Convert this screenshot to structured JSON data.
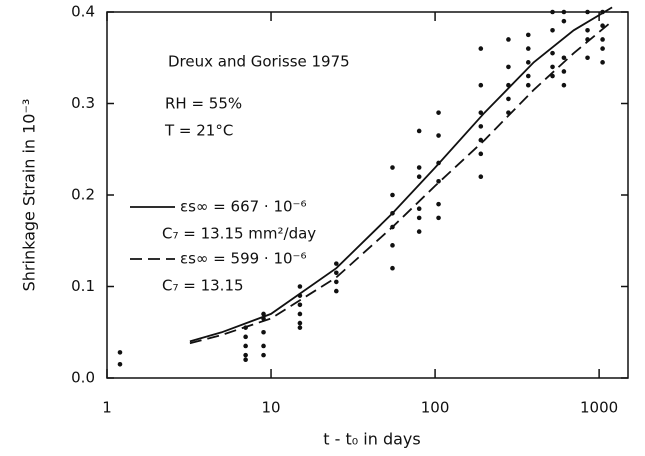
{
  "chart_data": {
    "type": "scatter",
    "xlabel": "t - t₀ in days",
    "ylabel": "Shrinkage Strain in 10⁻³",
    "annotations": [
      "Dreux and Gorisse 1975",
      "RH = 55%",
      "T = 21°C"
    ],
    "xscale": "log",
    "xlim": [
      1,
      1500
    ],
    "xticks": [
      1,
      10,
      100,
      1000
    ],
    "ylim": [
      0,
      0.4
    ],
    "yticks": [
      {
        "value": 0,
        "label": "0.0"
      },
      0.1,
      0.2,
      0.3,
      0.4
    ],
    "points": {
      "color": "#111111",
      "x": [
        1.2,
        1.2,
        7,
        7,
        7,
        7,
        7,
        9,
        9,
        9,
        9,
        9,
        15,
        15,
        15,
        15,
        15,
        15,
        25,
        25,
        25,
        25,
        55,
        55,
        55,
        55,
        55,
        55,
        80,
        80,
        80,
        80,
        80,
        80,
        105,
        105,
        105,
        105,
        105,
        105,
        190,
        190,
        190,
        190,
        190,
        190,
        190,
        280,
        280,
        280,
        280,
        280,
        370,
        370,
        370,
        370,
        370,
        520,
        520,
        520,
        520,
        520,
        610,
        610,
        610,
        610,
        610,
        850,
        850,
        850,
        850,
        1050,
        1050,
        1050,
        1050,
        1050
      ],
      "y": [
        0.028,
        0.015,
        0.055,
        0.045,
        0.035,
        0.025,
        0.02,
        0.07,
        0.065,
        0.05,
        0.035,
        0.025,
        0.1,
        0.09,
        0.08,
        0.07,
        0.06,
        0.055,
        0.125,
        0.115,
        0.105,
        0.095,
        0.23,
        0.2,
        0.18,
        0.165,
        0.145,
        0.12,
        0.27,
        0.23,
        0.22,
        0.185,
        0.175,
        0.16,
        0.29,
        0.265,
        0.235,
        0.215,
        0.19,
        0.175,
        0.36,
        0.32,
        0.29,
        0.275,
        0.26,
        0.245,
        0.22,
        0.37,
        0.34,
        0.32,
        0.305,
        0.29,
        0.375,
        0.36,
        0.345,
        0.33,
        0.32,
        0.4,
        0.38,
        0.355,
        0.34,
        0.33,
        0.4,
        0.39,
        0.35,
        0.335,
        0.32,
        0.4,
        0.38,
        0.37,
        0.35,
        0.4,
        0.385,
        0.37,
        0.36,
        0.345
      ]
    },
    "series": [
      {
        "name": "εs∞ = 667 · 10⁻⁶",
        "detail": "C₇ = 13.15 mm²/day",
        "color": "#111111",
        "dash": false,
        "x": [
          3.2,
          5,
          10,
          25,
          55,
          100,
          200,
          400,
          700,
          1200
        ],
        "values": [
          0.04,
          0.05,
          0.07,
          0.12,
          0.18,
          0.23,
          0.29,
          0.345,
          0.38,
          0.405
        ]
      },
      {
        "name": "εs∞ = 599 · 10⁻⁶",
        "detail": "C₇ = 13.15",
        "color": "#111111",
        "dash": true,
        "x": [
          3.2,
          5,
          10,
          25,
          55,
          100,
          200,
          400,
          700,
          1200
        ],
        "values": [
          0.038,
          0.047,
          0.065,
          0.11,
          0.165,
          0.21,
          0.26,
          0.315,
          0.355,
          0.39
        ]
      }
    ]
  }
}
